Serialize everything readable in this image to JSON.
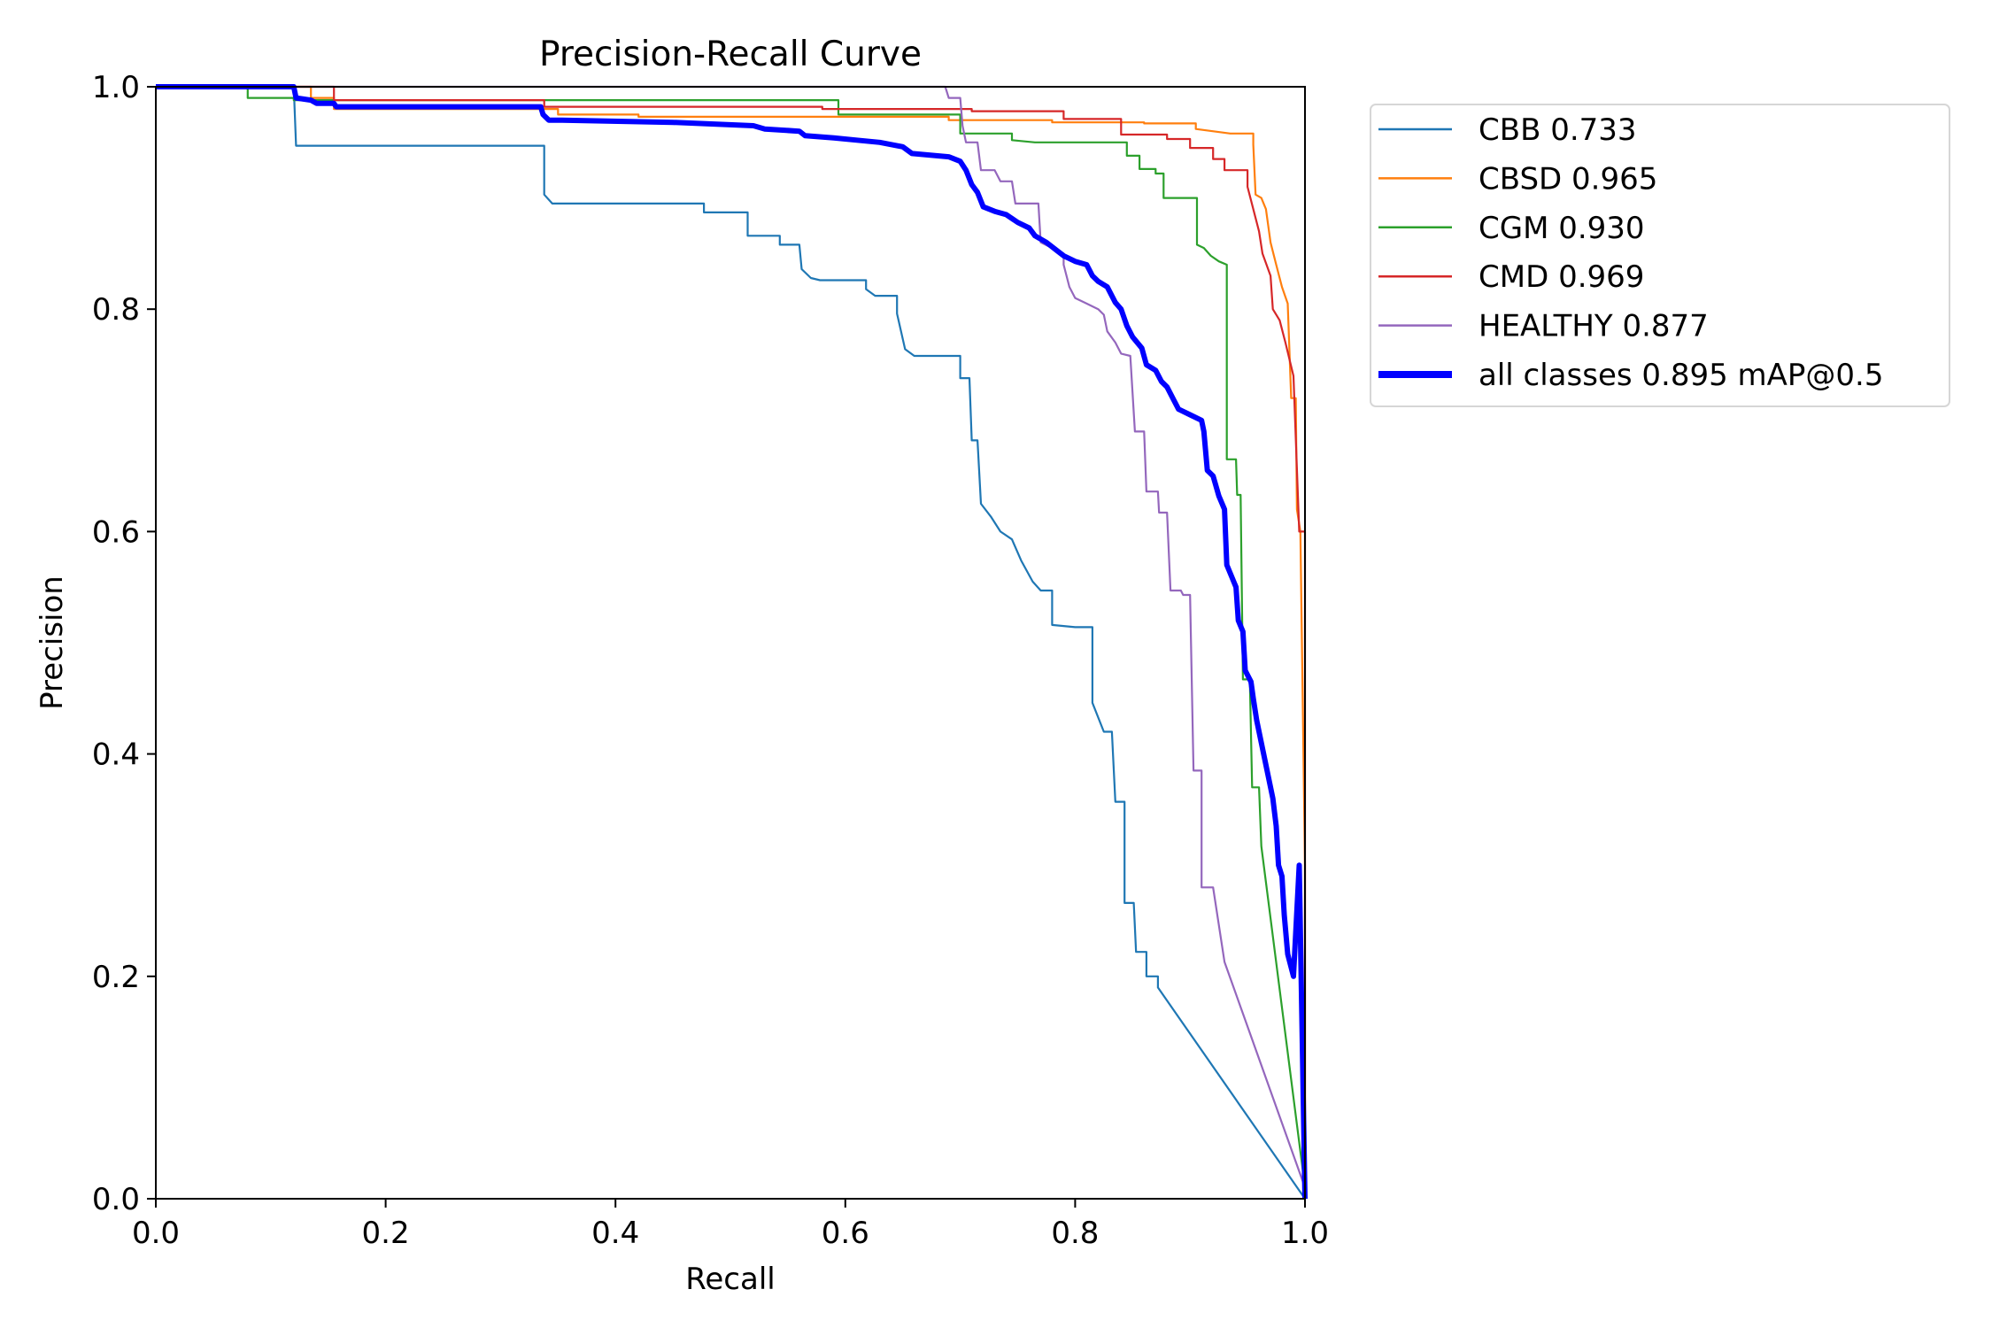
{
  "chart_data": {
    "type": "line",
    "title": "Precision-Recall Curve",
    "xlabel": "Recall",
    "ylabel": "Precision",
    "xlim": [
      0,
      1
    ],
    "ylim": [
      0,
      1
    ],
    "grid": false,
    "legend_placement": "outside-top-right",
    "xticks": [
      "0.0",
      "0.2",
      "0.4",
      "0.6",
      "0.8",
      "1.0"
    ],
    "yticks": [
      "0.0",
      "0.2",
      "0.4",
      "0.6",
      "0.8",
      "1.0"
    ],
    "series": [
      {
        "name": "CBB 0.733",
        "color": "#1f77b4",
        "width": "thin",
        "points": [
          [
            0,
            1
          ],
          [
            0.12,
            1
          ],
          [
            0.122,
            0.947
          ],
          [
            0.338,
            0.947
          ],
          [
            0.338,
            0.903
          ],
          [
            0.345,
            0.895
          ],
          [
            0.477,
            0.895
          ],
          [
            0.477,
            0.887
          ],
          [
            0.515,
            0.887
          ],
          [
            0.515,
            0.866
          ],
          [
            0.543,
            0.866
          ],
          [
            0.543,
            0.858
          ],
          [
            0.56,
            0.858
          ],
          [
            0.562,
            0.836
          ],
          [
            0.57,
            0.828
          ],
          [
            0.578,
            0.826
          ],
          [
            0.618,
            0.826
          ],
          [
            0.618,
            0.818
          ],
          [
            0.626,
            0.812
          ],
          [
            0.645,
            0.812
          ],
          [
            0.645,
            0.796
          ],
          [
            0.652,
            0.764
          ],
          [
            0.66,
            0.758
          ],
          [
            0.7,
            0.758
          ],
          [
            0.7,
            0.738
          ],
          [
            0.708,
            0.738
          ],
          [
            0.71,
            0.682
          ],
          [
            0.715,
            0.682
          ],
          [
            0.718,
            0.625
          ],
          [
            0.727,
            0.613
          ],
          [
            0.735,
            0.6
          ],
          [
            0.745,
            0.593
          ],
          [
            0.753,
            0.574
          ],
          [
            0.763,
            0.555
          ],
          [
            0.77,
            0.547
          ],
          [
            0.78,
            0.547
          ],
          [
            0.78,
            0.516
          ],
          [
            0.8,
            0.514
          ],
          [
            0.815,
            0.514
          ],
          [
            0.815,
            0.446
          ],
          [
            0.825,
            0.42
          ],
          [
            0.832,
            0.42
          ],
          [
            0.835,
            0.357
          ],
          [
            0.843,
            0.357
          ],
          [
            0.843,
            0.266
          ],
          [
            0.851,
            0.266
          ],
          [
            0.853,
            0.222
          ],
          [
            0.862,
            0.222
          ],
          [
            0.862,
            0.2
          ],
          [
            0.872,
            0.2
          ],
          [
            0.872,
            0.19
          ],
          [
            1.0,
            0.0
          ]
        ]
      },
      {
        "name": "CBSD 0.965",
        "color": "#ff7f0e",
        "width": "thin",
        "points": [
          [
            0,
            1
          ],
          [
            0.135,
            1
          ],
          [
            0.135,
            0.99
          ],
          [
            0.155,
            0.99
          ],
          [
            0.155,
            0.98
          ],
          [
            0.35,
            0.98
          ],
          [
            0.35,
            0.975
          ],
          [
            0.42,
            0.975
          ],
          [
            0.42,
            0.973
          ],
          [
            0.69,
            0.973
          ],
          [
            0.69,
            0.97
          ],
          [
            0.78,
            0.97
          ],
          [
            0.78,
            0.968
          ],
          [
            0.86,
            0.968
          ],
          [
            0.86,
            0.967
          ],
          [
            0.905,
            0.967
          ],
          [
            0.905,
            0.962
          ],
          [
            0.935,
            0.958
          ],
          [
            0.955,
            0.958
          ],
          [
            0.955,
            0.948
          ],
          [
            0.957,
            0.903
          ],
          [
            0.962,
            0.9
          ],
          [
            0.966,
            0.89
          ],
          [
            0.97,
            0.86
          ],
          [
            0.975,
            0.84
          ],
          [
            0.98,
            0.82
          ],
          [
            0.985,
            0.805
          ],
          [
            0.988,
            0.72
          ],
          [
            0.992,
            0.72
          ],
          [
            0.993,
            0.62
          ],
          [
            0.996,
            0.6
          ],
          [
            1.0,
            0.3
          ],
          [
            1.0,
            0.0
          ]
        ]
      },
      {
        "name": "CGM 0.930",
        "color": "#2ca02c",
        "width": "thin",
        "points": [
          [
            0,
            1
          ],
          [
            0.08,
            1
          ],
          [
            0.08,
            0.99
          ],
          [
            0.12,
            0.99
          ],
          [
            0.12,
            0.988
          ],
          [
            0.594,
            0.988
          ],
          [
            0.594,
            0.975
          ],
          [
            0.7,
            0.975
          ],
          [
            0.7,
            0.958
          ],
          [
            0.745,
            0.958
          ],
          [
            0.745,
            0.952
          ],
          [
            0.765,
            0.95
          ],
          [
            0.845,
            0.95
          ],
          [
            0.845,
            0.938
          ],
          [
            0.856,
            0.938
          ],
          [
            0.856,
            0.926
          ],
          [
            0.87,
            0.926
          ],
          [
            0.87,
            0.922
          ],
          [
            0.877,
            0.922
          ],
          [
            0.877,
            0.9
          ],
          [
            0.906,
            0.9
          ],
          [
            0.906,
            0.858
          ],
          [
            0.912,
            0.855
          ],
          [
            0.918,
            0.848
          ],
          [
            0.925,
            0.843
          ],
          [
            0.932,
            0.84
          ],
          [
            0.932,
            0.665
          ],
          [
            0.94,
            0.665
          ],
          [
            0.941,
            0.633
          ],
          [
            0.944,
            0.633
          ],
          [
            0.946,
            0.467
          ],
          [
            0.952,
            0.467
          ],
          [
            0.954,
            0.37
          ],
          [
            0.96,
            0.37
          ],
          [
            0.962,
            0.317
          ],
          [
            1.0,
            0.01
          ]
        ]
      },
      {
        "name": "CMD 0.969",
        "color": "#d62728",
        "width": "thin",
        "points": [
          [
            0,
            1
          ],
          [
            0.155,
            1
          ],
          [
            0.155,
            0.988
          ],
          [
            0.338,
            0.988
          ],
          [
            0.338,
            0.982
          ],
          [
            0.58,
            0.982
          ],
          [
            0.58,
            0.98
          ],
          [
            0.71,
            0.98
          ],
          [
            0.71,
            0.978
          ],
          [
            0.79,
            0.978
          ],
          [
            0.79,
            0.971
          ],
          [
            0.84,
            0.971
          ],
          [
            0.84,
            0.957
          ],
          [
            0.88,
            0.957
          ],
          [
            0.88,
            0.953
          ],
          [
            0.9,
            0.953
          ],
          [
            0.9,
            0.945
          ],
          [
            0.92,
            0.945
          ],
          [
            0.92,
            0.935
          ],
          [
            0.93,
            0.935
          ],
          [
            0.93,
            0.925
          ],
          [
            0.95,
            0.925
          ],
          [
            0.95,
            0.91
          ],
          [
            0.955,
            0.89
          ],
          [
            0.96,
            0.87
          ],
          [
            0.963,
            0.85
          ],
          [
            0.97,
            0.83
          ],
          [
            0.972,
            0.8
          ],
          [
            0.978,
            0.79
          ],
          [
            0.983,
            0.77
          ],
          [
            0.99,
            0.74
          ],
          [
            0.995,
            0.6
          ],
          [
            1.0,
            0.6
          ],
          [
            1.0,
            0.0
          ]
        ]
      },
      {
        "name": "HEALTHY 0.877",
        "color": "#9467bd",
        "width": "thin",
        "points": [
          [
            0,
            1
          ],
          [
            0.687,
            1
          ],
          [
            0.69,
            0.99
          ],
          [
            0.7,
            0.99
          ],
          [
            0.702,
            0.965
          ],
          [
            0.705,
            0.95
          ],
          [
            0.715,
            0.95
          ],
          [
            0.718,
            0.925
          ],
          [
            0.73,
            0.925
          ],
          [
            0.735,
            0.915
          ],
          [
            0.745,
            0.915
          ],
          [
            0.748,
            0.895
          ],
          [
            0.768,
            0.895
          ],
          [
            0.77,
            0.86
          ],
          [
            0.78,
            0.855
          ],
          [
            0.79,
            0.85
          ],
          [
            0.79,
            0.84
          ],
          [
            0.795,
            0.82
          ],
          [
            0.8,
            0.81
          ],
          [
            0.81,
            0.805
          ],
          [
            0.82,
            0.8
          ],
          [
            0.825,
            0.795
          ],
          [
            0.828,
            0.78
          ],
          [
            0.835,
            0.77
          ],
          [
            0.84,
            0.76
          ],
          [
            0.848,
            0.758
          ],
          [
            0.852,
            0.69
          ],
          [
            0.86,
            0.69
          ],
          [
            0.862,
            0.636
          ],
          [
            0.872,
            0.636
          ],
          [
            0.873,
            0.617
          ],
          [
            0.88,
            0.617
          ],
          [
            0.883,
            0.547
          ],
          [
            0.892,
            0.547
          ],
          [
            0.894,
            0.543
          ],
          [
            0.9,
            0.543
          ],
          [
            0.903,
            0.385
          ],
          [
            0.91,
            0.385
          ],
          [
            0.91,
            0.28
          ],
          [
            0.92,
            0.28
          ],
          [
            0.93,
            0.213
          ],
          [
            1.0,
            0.01
          ]
        ]
      },
      {
        "name": "all classes 0.895 mAP@0.5",
        "color": "#0000ff",
        "width": "thick",
        "points": [
          [
            0,
            1
          ],
          [
            0.12,
            1
          ],
          [
            0.122,
            0.99
          ],
          [
            0.135,
            0.988
          ],
          [
            0.14,
            0.985
          ],
          [
            0.155,
            0.985
          ],
          [
            0.157,
            0.982
          ],
          [
            0.335,
            0.982
          ],
          [
            0.337,
            0.975
          ],
          [
            0.342,
            0.97
          ],
          [
            0.35,
            0.97
          ],
          [
            0.45,
            0.968
          ],
          [
            0.52,
            0.965
          ],
          [
            0.53,
            0.962
          ],
          [
            0.56,
            0.96
          ],
          [
            0.565,
            0.956
          ],
          [
            0.59,
            0.954
          ],
          [
            0.61,
            0.952
          ],
          [
            0.63,
            0.95
          ],
          [
            0.65,
            0.946
          ],
          [
            0.658,
            0.94
          ],
          [
            0.69,
            0.937
          ],
          [
            0.7,
            0.933
          ],
          [
            0.705,
            0.925
          ],
          [
            0.71,
            0.912
          ],
          [
            0.715,
            0.905
          ],
          [
            0.72,
            0.892
          ],
          [
            0.73,
            0.888
          ],
          [
            0.74,
            0.885
          ],
          [
            0.75,
            0.878
          ],
          [
            0.76,
            0.873
          ],
          [
            0.765,
            0.866
          ],
          [
            0.775,
            0.86
          ],
          [
            0.785,
            0.852
          ],
          [
            0.79,
            0.848
          ],
          [
            0.8,
            0.843
          ],
          [
            0.81,
            0.84
          ],
          [
            0.815,
            0.83
          ],
          [
            0.82,
            0.825
          ],
          [
            0.828,
            0.82
          ],
          [
            0.835,
            0.806
          ],
          [
            0.84,
            0.8
          ],
          [
            0.845,
            0.785
          ],
          [
            0.85,
            0.775
          ],
          [
            0.858,
            0.765
          ],
          [
            0.862,
            0.75
          ],
          [
            0.87,
            0.745
          ],
          [
            0.875,
            0.735
          ],
          [
            0.88,
            0.73
          ],
          [
            0.885,
            0.72
          ],
          [
            0.89,
            0.71
          ],
          [
            0.9,
            0.705
          ],
          [
            0.91,
            0.7
          ],
          [
            0.912,
            0.69
          ],
          [
            0.915,
            0.655
          ],
          [
            0.92,
            0.65
          ],
          [
            0.925,
            0.632
          ],
          [
            0.93,
            0.62
          ],
          [
            0.932,
            0.57
          ],
          [
            0.936,
            0.56
          ],
          [
            0.94,
            0.55
          ],
          [
            0.942,
            0.52
          ],
          [
            0.946,
            0.51
          ],
          [
            0.948,
            0.475
          ],
          [
            0.953,
            0.465
          ],
          [
            0.955,
            0.45
          ],
          [
            0.958,
            0.43
          ],
          [
            0.962,
            0.41
          ],
          [
            0.965,
            0.395
          ],
          [
            0.968,
            0.38
          ],
          [
            0.972,
            0.36
          ],
          [
            0.975,
            0.335
          ],
          [
            0.977,
            0.3
          ],
          [
            0.98,
            0.29
          ],
          [
            0.982,
            0.255
          ],
          [
            0.985,
            0.22
          ],
          [
            0.99,
            0.2
          ],
          [
            0.995,
            0.3
          ],
          [
            1.0,
            0.0
          ]
        ]
      }
    ]
  }
}
